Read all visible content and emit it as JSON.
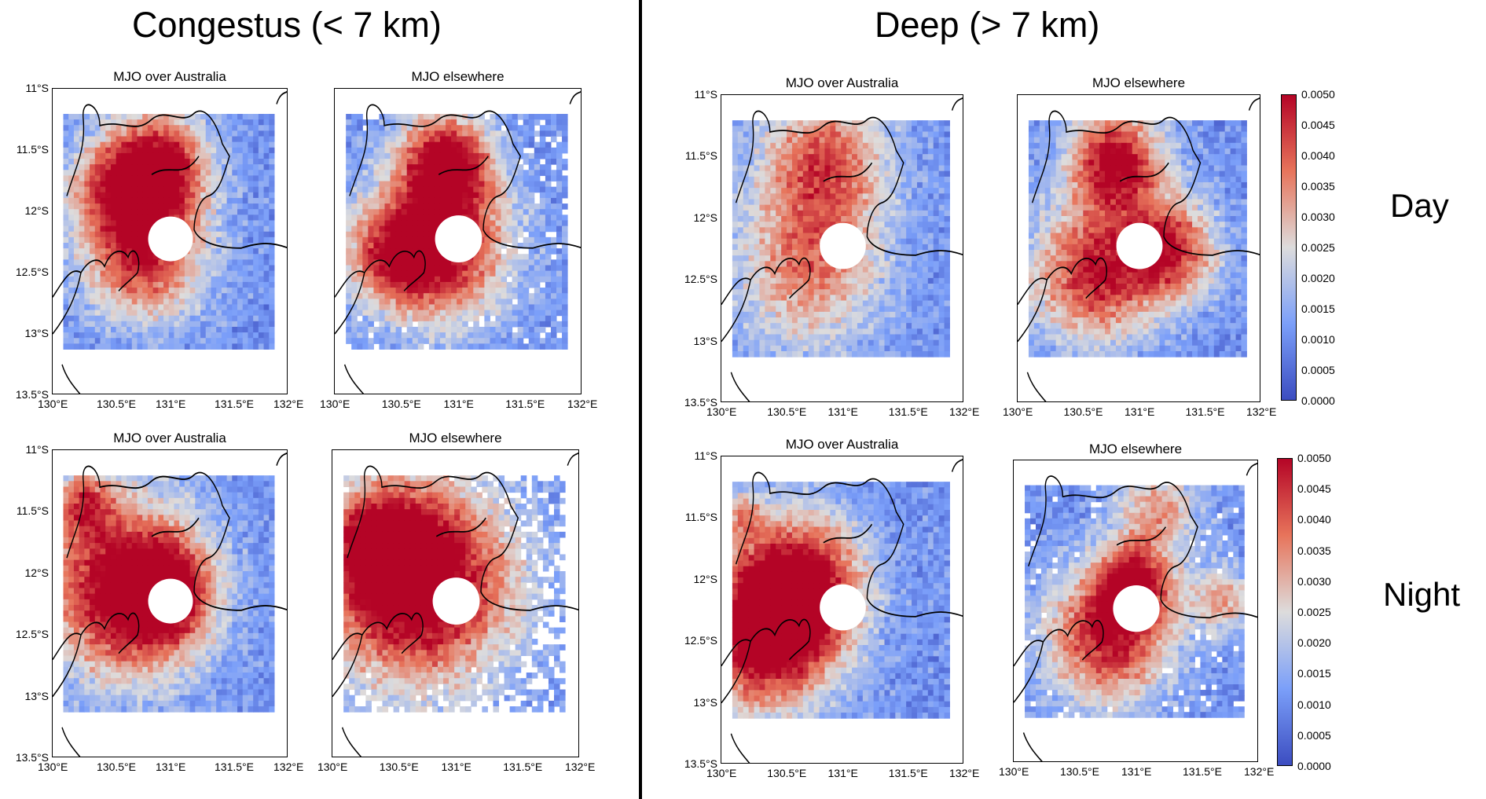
{
  "sections": {
    "congestus": "Congestus (< 7 km)",
    "deep": "Deep (> 7 km)"
  },
  "row_labels": {
    "day": "Day",
    "night": "Night"
  },
  "chart_data": [
    {
      "id": "congestus-day-australia",
      "type": "heatmap",
      "title": "MJO over Australia",
      "section": "Congestus (< 7 km)",
      "row": "Day",
      "x_ticks": [
        "130°E",
        "130.5°E",
        "131°E",
        "131.5°E",
        "132°E"
      ],
      "y_ticks": [
        "11°S",
        "11.5°S",
        "12°S",
        "12.5°S",
        "13°S",
        "13.5°S"
      ],
      "xlim": [
        130,
        132
      ],
      "ylim": [
        -13.5,
        -11
      ],
      "color_scale": [
        0,
        0.005
      ]
    },
    {
      "id": "congestus-day-elsewhere",
      "type": "heatmap",
      "title": "MJO elsewhere",
      "section": "Congestus (< 7 km)",
      "row": "Day",
      "x_ticks": [
        "130°E",
        "130.5°E",
        "131°E",
        "131.5°E",
        "132°E"
      ],
      "xlim": [
        130,
        132
      ],
      "ylim": [
        -13.5,
        -11
      ],
      "color_scale": [
        0,
        0.005
      ]
    },
    {
      "id": "congestus-night-australia",
      "type": "heatmap",
      "title": "MJO over Australia",
      "section": "Congestus (< 7 km)",
      "row": "Night",
      "x_ticks": [
        "130°E",
        "130.5°E",
        "131°E",
        "131.5°E",
        "132°E"
      ],
      "y_ticks": [
        "11°S",
        "11.5°S",
        "12°S",
        "12.5°S",
        "13°S",
        "13.5°S"
      ],
      "xlim": [
        130,
        132
      ],
      "ylim": [
        -13.5,
        -11
      ],
      "color_scale": [
        0,
        0.005
      ]
    },
    {
      "id": "congestus-night-elsewhere",
      "type": "heatmap",
      "title": "MJO elsewhere",
      "section": "Congestus (< 7 km)",
      "row": "Night",
      "x_ticks": [
        "130°E",
        "130.5°E",
        "131°E",
        "131.5°E",
        "132°E"
      ],
      "xlim": [
        130,
        132
      ],
      "ylim": [
        -13.5,
        -11
      ],
      "color_scale": [
        0,
        0.005
      ]
    },
    {
      "id": "deep-day-australia",
      "type": "heatmap",
      "title": "MJO over Australia",
      "section": "Deep (> 7 km)",
      "row": "Day",
      "x_ticks": [
        "130°E",
        "130.5°E",
        "131°E",
        "131.5°E",
        "132°E"
      ],
      "y_ticks": [
        "11°S",
        "11.5°S",
        "12°S",
        "12.5°S",
        "13°S",
        "13.5°S"
      ],
      "xlim": [
        130,
        132
      ],
      "ylim": [
        -13.5,
        -11
      ],
      "color_scale": [
        0,
        0.005
      ]
    },
    {
      "id": "deep-day-elsewhere",
      "type": "heatmap",
      "title": "MJO elsewhere",
      "section": "Deep (> 7 km)",
      "row": "Day",
      "x_ticks": [
        "130°E",
        "130.5°E",
        "131°E",
        "131.5°E",
        "132°E"
      ],
      "xlim": [
        130,
        132
      ],
      "ylim": [
        -13.5,
        -11
      ],
      "color_scale": [
        0,
        0.005
      ]
    },
    {
      "id": "deep-night-australia",
      "type": "heatmap",
      "title": "MJO over Australia",
      "section": "Deep (> 7 km)",
      "row": "Night",
      "x_ticks": [
        "130°E",
        "130.5°E",
        "131°E",
        "131.5°E",
        "132°E"
      ],
      "y_ticks": [
        "11°S",
        "11.5°S",
        "12°S",
        "12.5°S",
        "13°S",
        "13.5°S"
      ],
      "xlim": [
        130,
        132
      ],
      "ylim": [
        -13.5,
        -11
      ],
      "color_scale": [
        0,
        0.005
      ]
    },
    {
      "id": "deep-night-elsewhere",
      "type": "heatmap",
      "title": "MJO elsewhere",
      "section": "Deep (> 7 km)",
      "row": "Night",
      "x_ticks": [
        "130°E",
        "130.5°E",
        "131°E",
        "131.5°E",
        "132°E"
      ],
      "xlim": [
        130,
        132
      ],
      "ylim": [
        -13.5,
        -11
      ],
      "color_scale": [
        0,
        0.005
      ]
    }
  ],
  "colorbar": {
    "ticks": [
      "0.0050",
      "0.0045",
      "0.0040",
      "0.0035",
      "0.0030",
      "0.0025",
      "0.0020",
      "0.0015",
      "0.0010",
      "0.0005",
      "0.0000"
    ],
    "range": [
      0,
      0.005
    ],
    "colors": [
      "#b40426",
      "#e7745b",
      "#dddcdc",
      "#7b9ff9",
      "#3b4cc0"
    ]
  }
}
